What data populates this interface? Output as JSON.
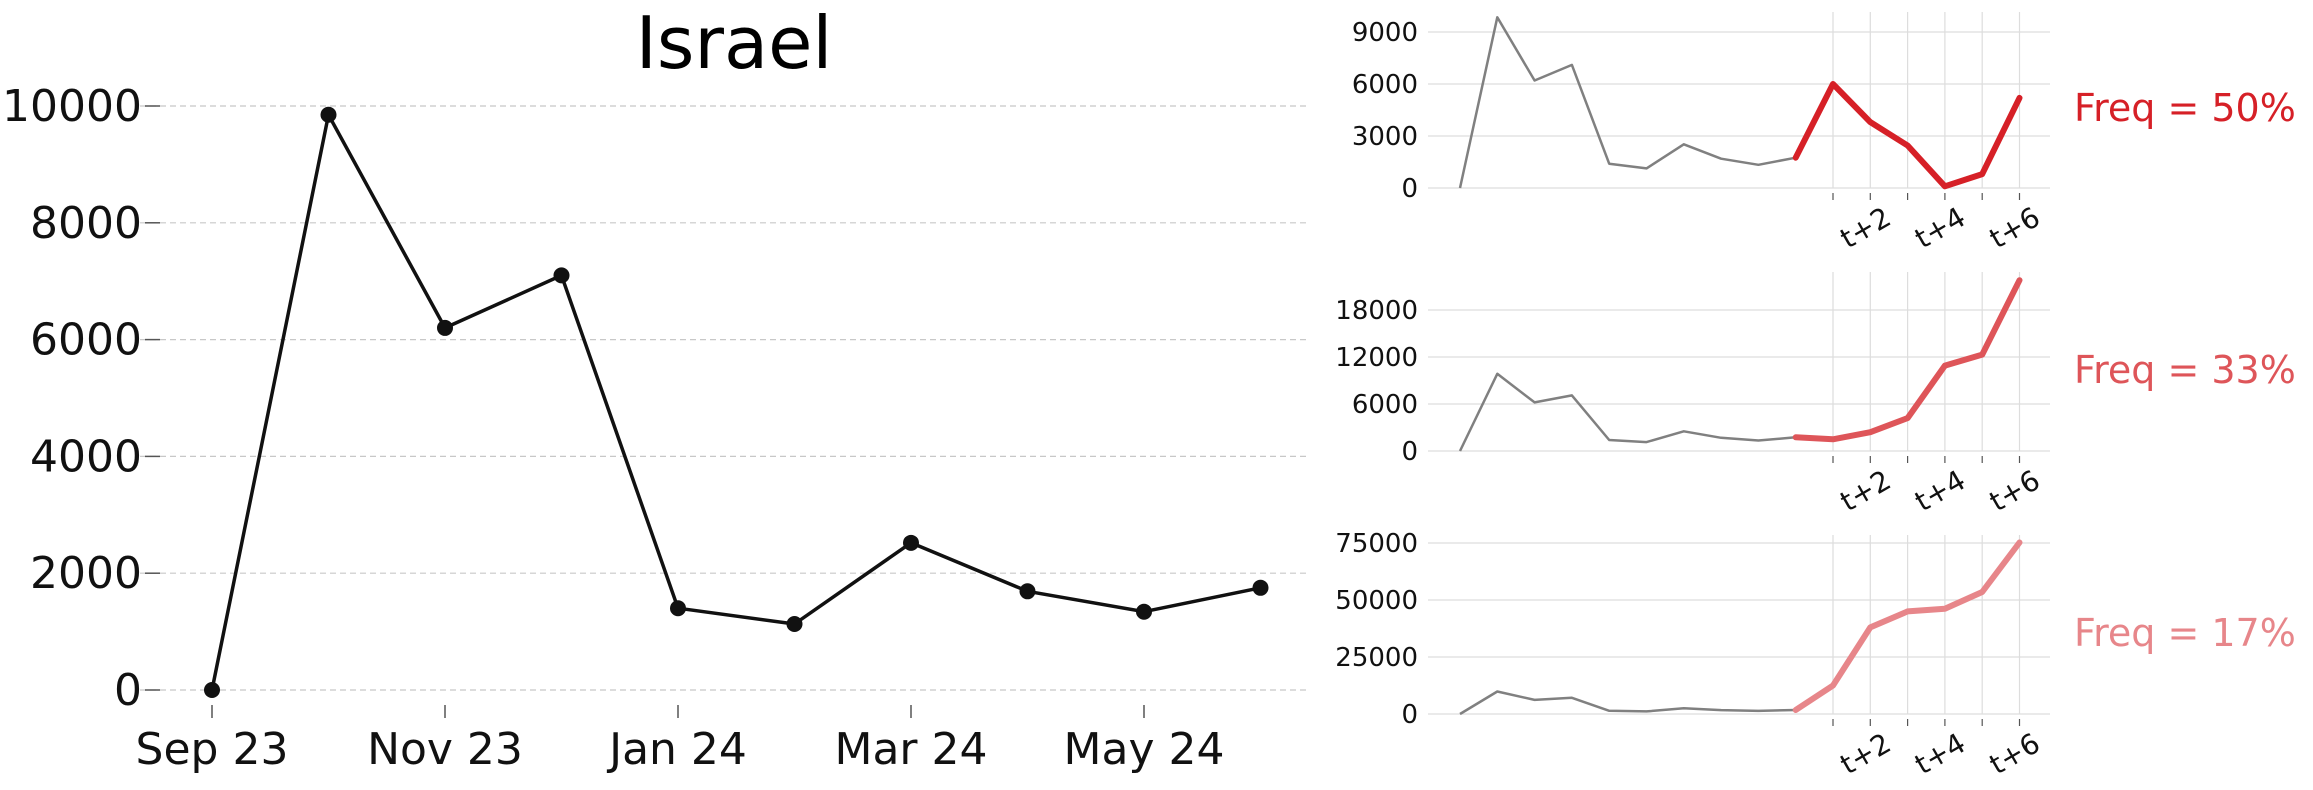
{
  "chart_data": [
    {
      "type": "line",
      "title": "Israel",
      "xlabel": "",
      "ylabel": "",
      "x": [
        "Sep 23",
        "Oct 23",
        "Nov 23",
        "Dec 23",
        "Jan 24",
        "Feb 24",
        "Mar 24",
        "Apr 24",
        "May 24",
        "Jun 24"
      ],
      "x_tick_labels": [
        "Sep 23",
        "Nov 23",
        "Jan 24",
        "Mar 24",
        "May 24"
      ],
      "y_ticks": [
        0,
        2000,
        4000,
        6000,
        8000,
        10000
      ],
      "ylim": [
        -400,
        10500
      ],
      "grid": "horizontal dashed",
      "series": [
        {
          "values": [
            0,
            9850,
            6200,
            7100,
            1400,
            1130,
            2520,
            1690,
            1340,
            1750
          ]
        }
      ],
      "colors": {
        "line": "#111111",
        "grid": "#c8c8c8"
      }
    },
    {
      "type": "line",
      "annotation": "Freq = 50%",
      "x_tick_labels": [
        "t+2",
        "t+4",
        "t+6"
      ],
      "y_ticks": [
        0,
        3000,
        6000,
        9000
      ],
      "ylim": [
        -300,
        10000
      ],
      "history": [
        0,
        9850,
        6200,
        7100,
        1400,
        1130,
        2520,
        1690,
        1340,
        1750
      ],
      "forecast": [
        1750,
        6000,
        3800,
        2450,
        100,
        800,
        5200
      ],
      "colors": {
        "history": "#808080",
        "forecast": "#d62027"
      }
    },
    {
      "type": "line",
      "annotation": "Freq = 33%",
      "x_tick_labels": [
        "t+2",
        "t+4",
        "t+6"
      ],
      "y_ticks": [
        0,
        6000,
        12000,
        18000
      ],
      "ylim": [
        -800,
        22000
      ],
      "history": [
        0,
        9850,
        6200,
        7100,
        1400,
        1130,
        2520,
        1690,
        1340,
        1750
      ],
      "forecast": [
        1750,
        1500,
        2400,
        4200,
        10900,
        12300,
        21800
      ],
      "colors": {
        "history": "#808080",
        "forecast": "#de5559"
      }
    },
    {
      "type": "line",
      "annotation": "Freq = 17%",
      "x_tick_labels": [
        "t+2",
        "t+4",
        "t+6"
      ],
      "y_ticks": [
        0,
        25000,
        50000,
        75000
      ],
      "ylim": [
        -2000,
        79000
      ],
      "history": [
        0,
        9850,
        6200,
        7100,
        1400,
        1130,
        2520,
        1690,
        1340,
        1750
      ],
      "forecast": [
        1750,
        12500,
        38000,
        45000,
        46200,
        53500,
        75200
      ],
      "colors": {
        "history": "#808080",
        "forecast": "#e7868a"
      }
    }
  ]
}
